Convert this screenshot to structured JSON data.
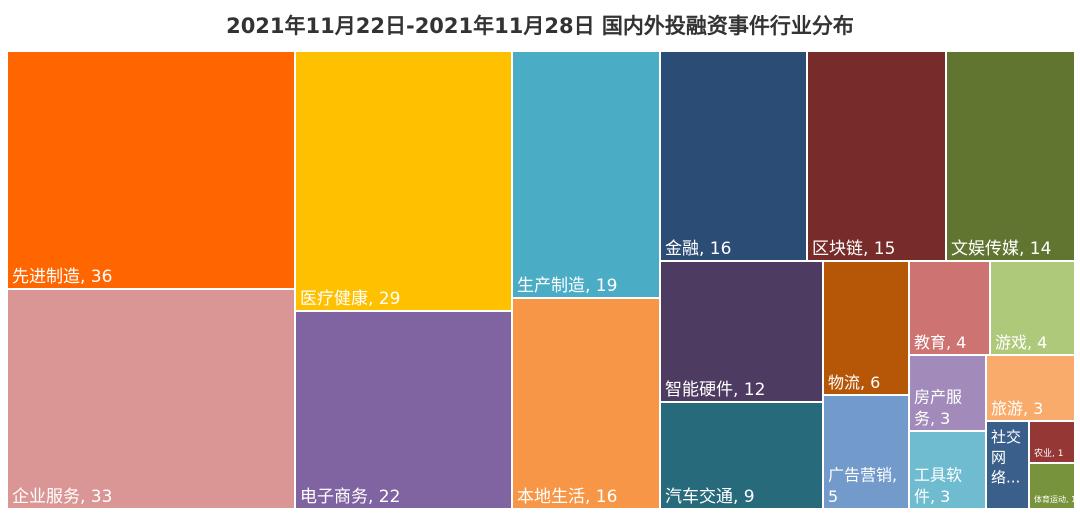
{
  "chart_data": {
    "type": "treemap",
    "title": "2021年11月22日-2021年11月28日 国内外投融资事件行业分布",
    "items": [
      {
        "name": "先进制造",
        "value": 36,
        "color": "#FF6600",
        "label": "先进制造, 36"
      },
      {
        "name": "企业服务",
        "value": 33,
        "color": "#D99694",
        "label": "企业服务, 33"
      },
      {
        "name": "医疗健康",
        "value": 29,
        "color": "#FFC000",
        "label": "医疗健康, 29"
      },
      {
        "name": "电子商务",
        "value": 22,
        "color": "#8064A2",
        "label": "电子商务, 22"
      },
      {
        "name": "生产制造",
        "value": 19,
        "color": "#4BACC6",
        "label": "生产制造, 19"
      },
      {
        "name": "本地生活",
        "value": 16,
        "color": "#F79646",
        "label": "本地生活, 16"
      },
      {
        "name": "金融",
        "value": 16,
        "color": "#2B4C74",
        "label": "金融, 16"
      },
      {
        "name": "区块链",
        "value": 15,
        "color": "#772C2A",
        "label": "区块链, 15"
      },
      {
        "name": "文娱传媒",
        "value": 14,
        "color": "#5F7530",
        "label": "文娱传媒, 14"
      },
      {
        "name": "智能硬件",
        "value": 12,
        "color": "#4D3B62",
        "label": "智能硬件, 12"
      },
      {
        "name": "汽车交通",
        "value": 9,
        "color": "#276A7C",
        "label": "汽车交通, 9"
      },
      {
        "name": "物流",
        "value": 6,
        "color": "#B65708",
        "label": "物流, 6"
      },
      {
        "name": "广告营销",
        "value": 5,
        "color": "#729ACA",
        "label_lines": [
          "广告营销,",
          "5"
        ]
      },
      {
        "name": "教育",
        "value": 4,
        "color": "#CD7371",
        "label": "教育, 4"
      },
      {
        "name": "游戏",
        "value": 4,
        "color": "#AFC97A",
        "label": "游戏, 4"
      },
      {
        "name": "房产服务",
        "value": 3,
        "color": "#A28BBA",
        "label_lines": [
          "房产服",
          "务, 3"
        ]
      },
      {
        "name": "旅游",
        "value": 3,
        "color": "#F9AB6B",
        "label": "旅游, 3"
      },
      {
        "name": "工具软件",
        "value": 3,
        "color": "#6FBCD1",
        "label_lines": [
          "工具软",
          "件, 3"
        ]
      },
      {
        "name": "社交网络",
        "value": 2,
        "color": "#3A5F8B",
        "label_lines": [
          "社交",
          "网",
          "络..."
        ]
      },
      {
        "name": "农业",
        "value": 1,
        "color": "#953735",
        "label": "农业, 1"
      },
      {
        "name": "体育运动",
        "value": 1,
        "color": "#77933C",
        "label": "体育运动, 1"
      }
    ]
  }
}
